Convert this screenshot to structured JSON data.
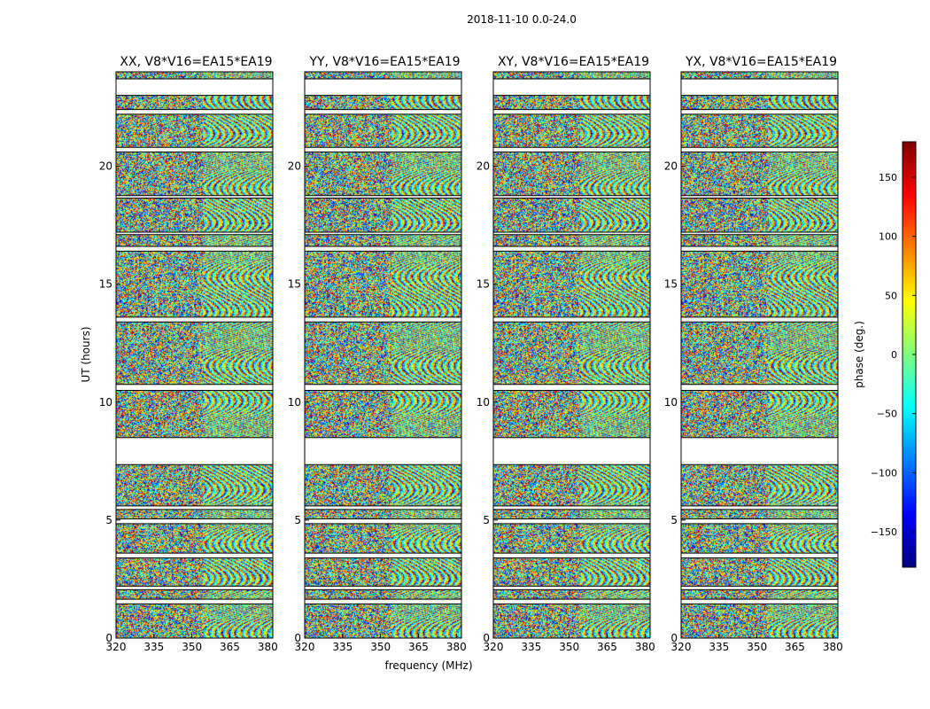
{
  "figure": {
    "suptitle": "2018-11-10 0.0-24.0"
  },
  "chart_data": {
    "type": "heatmap",
    "suptitle": "2018-11-10 0.0-24.0",
    "xlabel": "frequency (MHz)",
    "ylabel": "UT (hours)",
    "xlim": [
      320,
      382
    ],
    "ylim": [
      0,
      24
    ],
    "xticks": [
      320,
      335,
      350,
      365,
      380
    ],
    "yticks": [
      0,
      5,
      10,
      15,
      20
    ],
    "colorbar": {
      "label": "phase (deg.)",
      "range": [
        -180,
        180
      ],
      "ticks": [
        -150,
        -100,
        -50,
        0,
        50,
        100,
        150
      ],
      "colormap": "jet",
      "colors": [
        "#00007f",
        "#0000ff",
        "#007fff",
        "#00ffff",
        "#7fff7f",
        "#ffff00",
        "#ff7f00",
        "#ff0000",
        "#7f0000"
      ]
    },
    "blank_time_ranges": [
      [
        1.45,
        1.65
      ],
      [
        2.05,
        2.2
      ],
      [
        3.4,
        3.6
      ],
      [
        4.85,
        5.05
      ],
      [
        5.45,
        5.6
      ],
      [
        7.35,
        8.5
      ],
      [
        10.5,
        10.75
      ],
      [
        13.4,
        13.6
      ],
      [
        16.4,
        16.6
      ],
      [
        17.1,
        17.2
      ],
      [
        18.65,
        18.75
      ],
      [
        20.6,
        20.8
      ],
      [
        22.2,
        22.4
      ],
      [
        23.0,
        23.7
      ]
    ],
    "panels": [
      {
        "title": "XX, V8*V16=EA15*EA19",
        "pol": "XX",
        "baseline": "V8*V16=EA15*EA19"
      },
      {
        "title": "YY, V8*V16=EA15*EA19",
        "pol": "YY",
        "baseline": "V8*V16=EA15*EA19"
      },
      {
        "title": "XY, V8*V16=EA15*EA19",
        "pol": "XY",
        "baseline": "V8*V16=EA15*EA19"
      },
      {
        "title": "YX, V8*V16=EA15*EA19",
        "pol": "YX",
        "baseline": "V8*V16=EA15*EA19"
      }
    ]
  }
}
